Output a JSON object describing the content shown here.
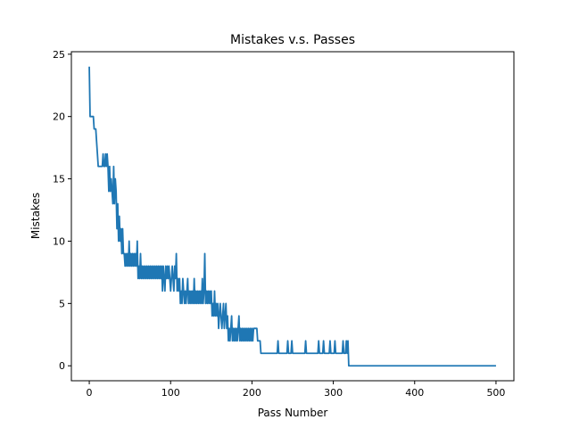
{
  "chart_data": {
    "type": "line",
    "title": "Mistakes v.s. Passes",
    "xlabel": "Pass Number",
    "ylabel": "Mistakes",
    "xlim": [
      -22,
      522
    ],
    "ylim": [
      -1.2,
      25.2
    ],
    "xticks": [
      0,
      100,
      200,
      300,
      400,
      500
    ],
    "yticks": [
      0,
      5,
      10,
      15,
      20,
      25
    ],
    "grid": false,
    "series": [
      {
        "color": "#1f77b4",
        "points": [
          [
            0,
            24
          ],
          [
            1,
            20
          ],
          [
            5,
            20
          ],
          [
            6,
            19
          ],
          [
            8,
            19
          ],
          [
            9,
            18
          ],
          [
            10,
            17
          ],
          [
            11,
            16
          ],
          [
            16,
            16
          ],
          [
            17,
            17
          ],
          [
            18,
            16
          ],
          [
            19,
            16
          ],
          [
            20,
            17
          ],
          [
            21,
            16
          ],
          [
            22,
            17
          ],
          [
            23,
            16
          ],
          [
            24,
            14
          ],
          [
            25,
            16
          ],
          [
            26,
            14
          ],
          [
            27,
            15
          ],
          [
            28,
            14
          ],
          [
            29,
            13
          ],
          [
            30,
            16
          ],
          [
            31,
            13
          ],
          [
            32,
            15
          ],
          [
            33,
            14
          ],
          [
            34,
            11
          ],
          [
            35,
            13
          ],
          [
            36,
            10
          ],
          [
            37,
            12
          ],
          [
            38,
            10
          ],
          [
            39,
            11
          ],
          [
            40,
            9
          ],
          [
            41,
            11
          ],
          [
            42,
            9
          ],
          [
            43,
            9
          ],
          [
            44,
            8
          ],
          [
            45,
            9
          ],
          [
            46,
            8
          ],
          [
            47,
            9
          ],
          [
            48,
            8
          ],
          [
            49,
            10
          ],
          [
            50,
            8
          ],
          [
            51,
            9
          ],
          [
            52,
            8
          ],
          [
            53,
            9
          ],
          [
            54,
            8
          ],
          [
            55,
            9
          ],
          [
            56,
            8
          ],
          [
            57,
            9
          ],
          [
            58,
            8
          ],
          [
            59,
            10
          ],
          [
            60,
            7
          ],
          [
            61,
            8
          ],
          [
            62,
            7
          ],
          [
            63,
            9
          ],
          [
            64,
            7
          ],
          [
            65,
            8
          ],
          [
            66,
            7
          ],
          [
            67,
            8
          ],
          [
            68,
            7
          ],
          [
            69,
            8
          ],
          [
            70,
            7
          ],
          [
            71,
            8
          ],
          [
            72,
            7
          ],
          [
            73,
            8
          ],
          [
            74,
            7
          ],
          [
            75,
            8
          ],
          [
            76,
            7
          ],
          [
            77,
            8
          ],
          [
            78,
            7
          ],
          [
            79,
            8
          ],
          [
            80,
            7
          ],
          [
            81,
            8
          ],
          [
            82,
            7
          ],
          [
            83,
            8
          ],
          [
            84,
            7
          ],
          [
            85,
            8
          ],
          [
            86,
            7
          ],
          [
            87,
            8
          ],
          [
            88,
            7
          ],
          [
            89,
            8
          ],
          [
            90,
            6
          ],
          [
            91,
            8
          ],
          [
            92,
            7
          ],
          [
            93,
            6
          ],
          [
            94,
            8
          ],
          [
            95,
            7
          ],
          [
            96,
            8
          ],
          [
            97,
            7
          ],
          [
            98,
            8
          ],
          [
            99,
            7
          ],
          [
            100,
            6
          ],
          [
            101,
            7
          ],
          [
            102,
            8
          ],
          [
            103,
            7
          ],
          [
            104,
            6
          ],
          [
            105,
            8
          ],
          [
            106,
            7
          ],
          [
            107,
            9
          ],
          [
            108,
            6
          ],
          [
            109,
            7
          ],
          [
            110,
            6
          ],
          [
            111,
            7
          ],
          [
            112,
            5
          ],
          [
            113,
            6
          ],
          [
            114,
            5
          ],
          [
            115,
            7
          ],
          [
            116,
            6
          ],
          [
            117,
            5
          ],
          [
            118,
            6
          ],
          [
            119,
            5
          ],
          [
            120,
            6
          ],
          [
            121,
            7
          ],
          [
            122,
            5
          ],
          [
            123,
            6
          ],
          [
            124,
            5
          ],
          [
            125,
            6
          ],
          [
            126,
            5
          ],
          [
            127,
            6
          ],
          [
            128,
            5
          ],
          [
            129,
            7
          ],
          [
            130,
            5
          ],
          [
            131,
            6
          ],
          [
            132,
            5
          ],
          [
            133,
            6
          ],
          [
            134,
            5
          ],
          [
            135,
            6
          ],
          [
            136,
            5
          ],
          [
            137,
            6
          ],
          [
            138,
            5
          ],
          [
            139,
            7
          ],
          [
            140,
            5
          ],
          [
            141,
            6
          ],
          [
            142,
            9
          ],
          [
            143,
            5
          ],
          [
            144,
            6
          ],
          [
            145,
            5
          ],
          [
            146,
            6
          ],
          [
            147,
            5
          ],
          [
            148,
            6
          ],
          [
            149,
            5
          ],
          [
            150,
            6
          ],
          [
            151,
            4
          ],
          [
            152,
            5
          ],
          [
            153,
            4
          ],
          [
            154,
            6
          ],
          [
            155,
            4
          ],
          [
            156,
            5
          ],
          [
            157,
            4
          ],
          [
            158,
            5
          ],
          [
            159,
            3
          ],
          [
            160,
            4
          ],
          [
            161,
            5
          ],
          [
            162,
            4
          ],
          [
            163,
            3
          ],
          [
            164,
            4
          ],
          [
            165,
            5
          ],
          [
            166,
            3
          ],
          [
            167,
            4
          ],
          [
            168,
            5
          ],
          [
            169,
            3
          ],
          [
            170,
            4
          ],
          [
            171,
            2
          ],
          [
            172,
            3
          ],
          [
            173,
            2
          ],
          [
            174,
            3
          ],
          [
            175,
            4
          ],
          [
            176,
            2
          ],
          [
            177,
            3
          ],
          [
            178,
            2
          ],
          [
            179,
            3
          ],
          [
            180,
            2
          ],
          [
            181,
            3
          ],
          [
            182,
            2
          ],
          [
            183,
            3
          ],
          [
            184,
            4
          ],
          [
            185,
            2
          ],
          [
            186,
            3
          ],
          [
            187,
            2
          ],
          [
            188,
            3
          ],
          [
            189,
            2
          ],
          [
            190,
            3
          ],
          [
            191,
            2
          ],
          [
            192,
            3
          ],
          [
            193,
            2
          ],
          [
            194,
            3
          ],
          [
            195,
            2
          ],
          [
            196,
            3
          ],
          [
            197,
            2
          ],
          [
            198,
            3
          ],
          [
            199,
            2
          ],
          [
            200,
            3
          ],
          [
            201,
            2
          ],
          [
            202,
            3
          ],
          [
            206,
            3
          ],
          [
            207,
            2
          ],
          [
            210,
            2
          ],
          [
            211,
            1
          ],
          [
            231,
            1
          ],
          [
            232,
            2
          ],
          [
            233,
            1
          ],
          [
            243,
            1
          ],
          [
            244,
            2
          ],
          [
            245,
            1
          ],
          [
            248,
            1
          ],
          [
            249,
            2
          ],
          [
            250,
            1
          ],
          [
            265,
            1
          ],
          [
            266,
            2
          ],
          [
            267,
            1
          ],
          [
            281,
            1
          ],
          [
            282,
            2
          ],
          [
            283,
            1
          ],
          [
            287,
            1
          ],
          [
            288,
            2
          ],
          [
            289,
            1
          ],
          [
            295,
            1
          ],
          [
            296,
            2
          ],
          [
            297,
            1
          ],
          [
            301,
            1
          ],
          [
            302,
            2
          ],
          [
            303,
            1
          ],
          [
            311,
            1
          ],
          [
            312,
            2
          ],
          [
            313,
            1
          ],
          [
            315,
            1
          ],
          [
            316,
            2
          ],
          [
            317,
            1
          ],
          [
            318,
            2
          ],
          [
            319,
            0
          ],
          [
            500,
            0
          ]
        ]
      }
    ]
  }
}
